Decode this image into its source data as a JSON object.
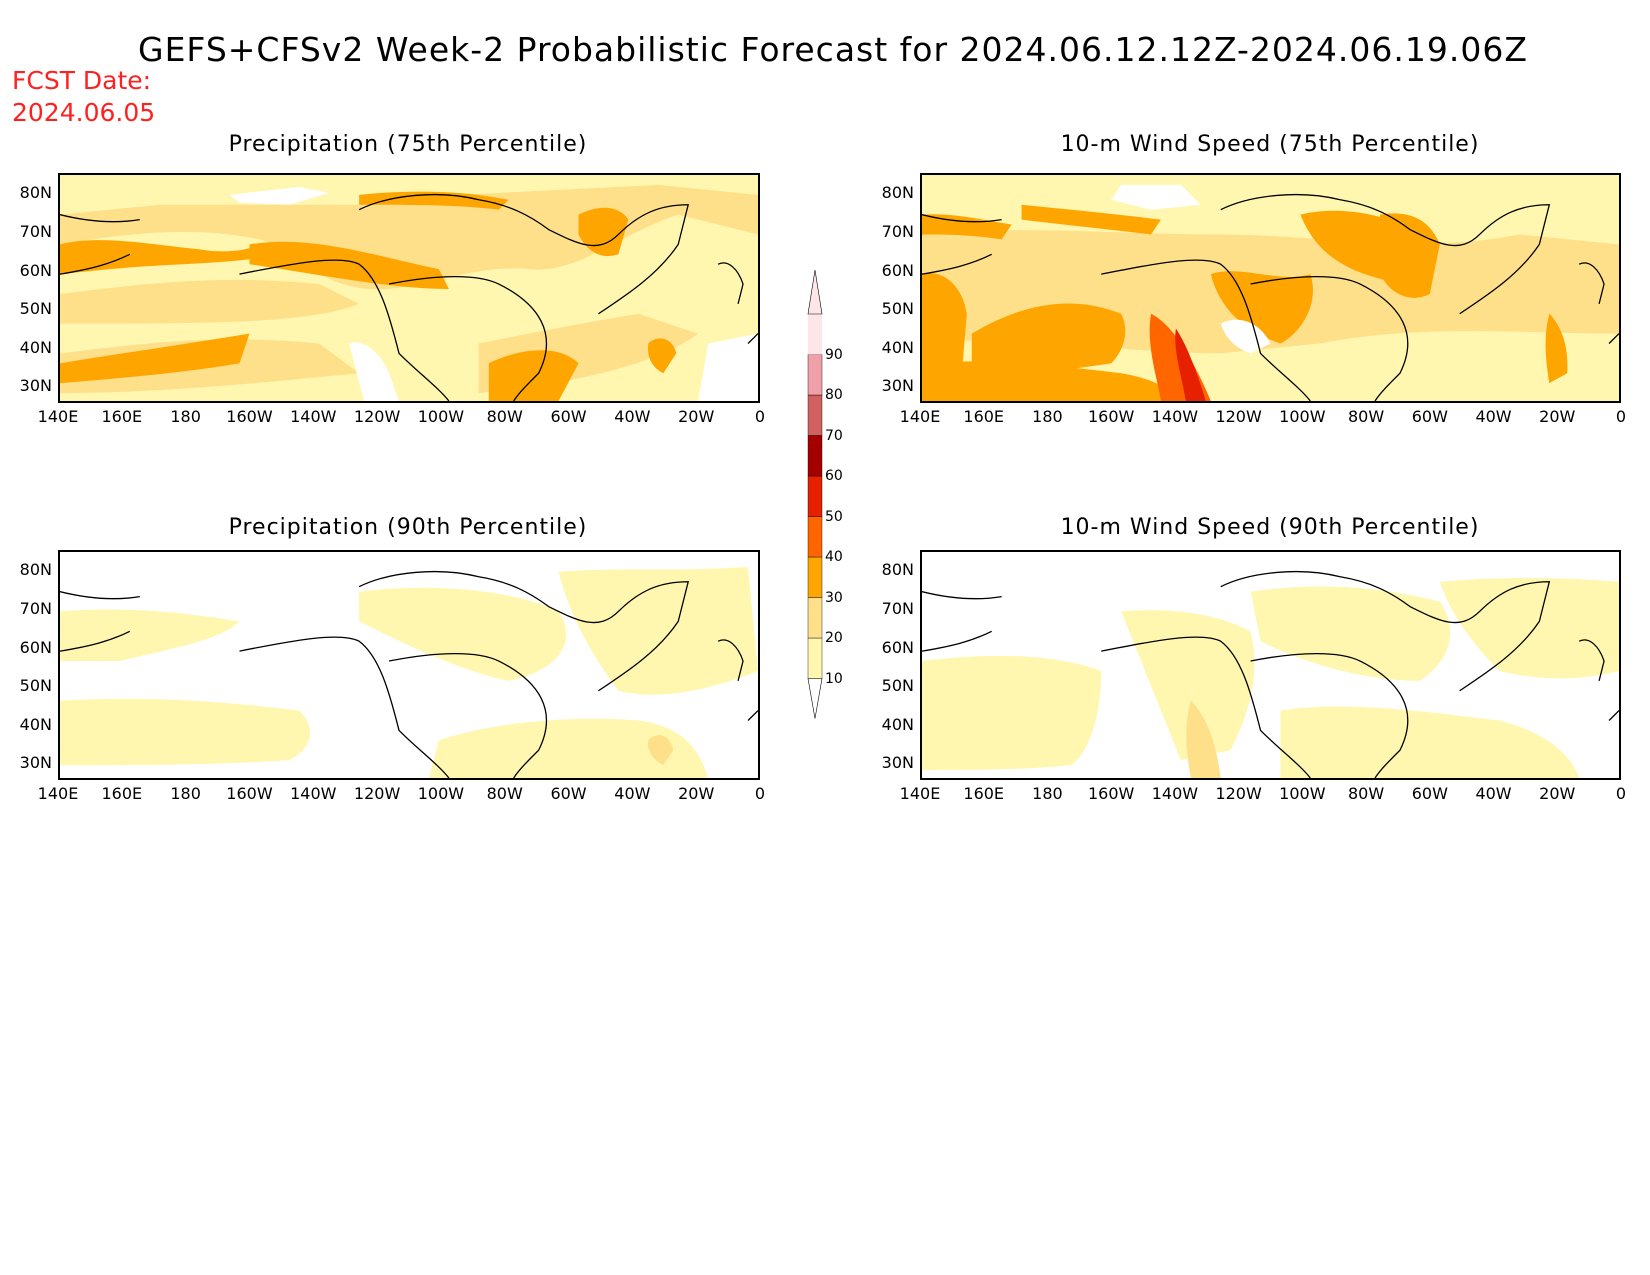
{
  "title": "GEFS+CFSv2 Week-2 Probabilistic Forecast for 2024.06.12.12Z-2024.06.19.06Z",
  "fcst_label": "FCST Date:",
  "fcst_date": "2024.06.05",
  "panels": [
    {
      "id": "precip75",
      "title": "Precipitation (75th Percentile)"
    },
    {
      "id": "wind75",
      "title": "10-m Wind Speed (75th Percentile)"
    },
    {
      "id": "precip90",
      "title": "Precipitation (90th Percentile)"
    },
    {
      "id": "wind90",
      "title": "10-m Wind Speed (90th Percentile)"
    }
  ],
  "lat_labels": [
    "80N",
    "70N",
    "60N",
    "50N",
    "40N",
    "30N"
  ],
  "lon_labels": [
    "140E",
    "160E",
    "180",
    "160W",
    "140W",
    "120W",
    "100W",
    "80W",
    "60W",
    "40W",
    "20W",
    "0"
  ],
  "colorbar": {
    "levels": [
      "10",
      "20",
      "30",
      "40",
      "50",
      "60",
      "70",
      "80",
      "90"
    ],
    "colors": [
      "#fff7b0",
      "#ffe08a",
      "#ffa500",
      "#ff6600",
      "#e62000",
      "#a50000",
      "#d36060",
      "#f0a0a8",
      "#fde5e8"
    ]
  }
}
